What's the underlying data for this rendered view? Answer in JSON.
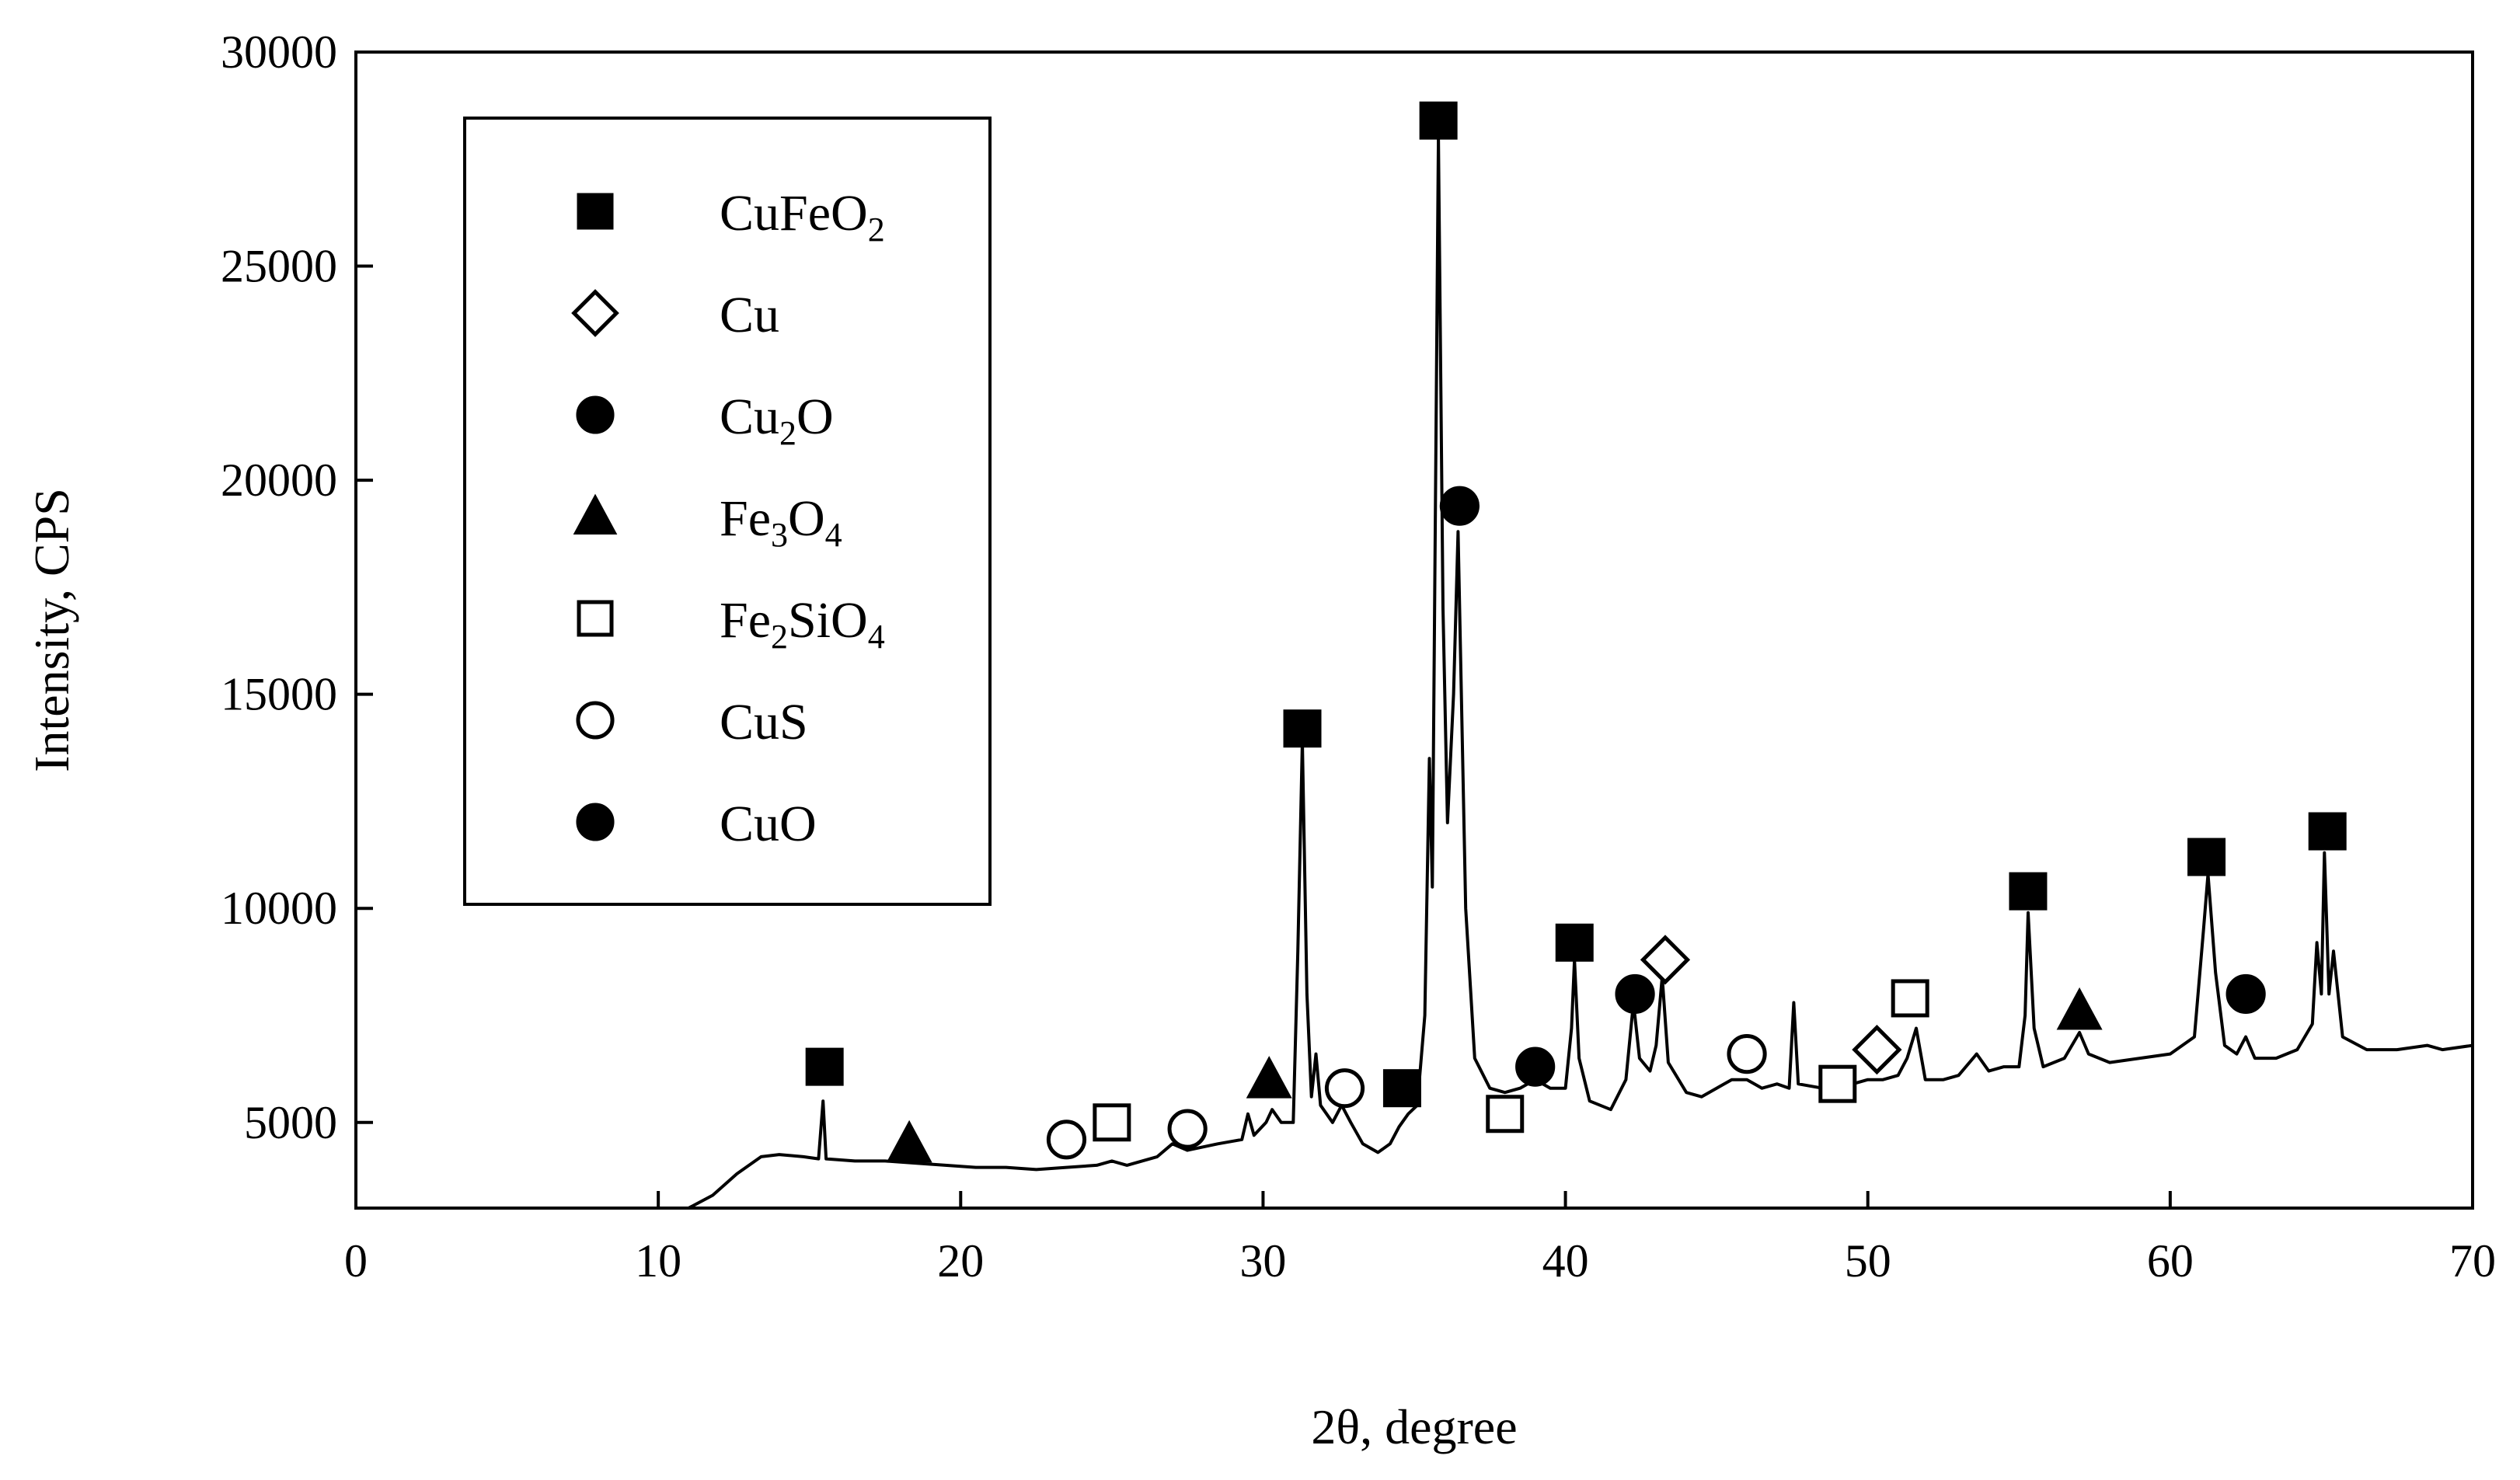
{
  "chart_data": {
    "type": "line",
    "title": "",
    "xlabel": "2θ, degree",
    "ylabel": "Intensity, CPS",
    "xlim": [
      0,
      70
    ],
    "ylim": [
      3000,
      30000
    ],
    "x_ticks": [
      "0",
      "10",
      "20",
      "30",
      "40",
      "50",
      "60",
      "70"
    ],
    "y_ticks": [
      "5000",
      "10000",
      "15000",
      "20000",
      "25000",
      "30000"
    ],
    "grid": false,
    "legend_position": "top-left",
    "legend": [
      {
        "key": "cufeo2",
        "base": "CuFeO",
        "sub": "2",
        "marker": "square-filled"
      },
      {
        "key": "cu",
        "base": "Cu",
        "sub": "",
        "marker": "diamond-open"
      },
      {
        "key": "cu2o",
        "base": "Cu",
        "sub": "2",
        "tail": "O",
        "marker": "circle-filled"
      },
      {
        "key": "fe3o4",
        "base": "Fe",
        "sub": "3",
        "tail": "O",
        "sub2": "4",
        "marker": "triangle-filled"
      },
      {
        "key": "fe2sio4",
        "base": "Fe",
        "sub": "2",
        "tail": "SiO",
        "sub2": "4",
        "marker": "square-open"
      },
      {
        "key": "cus",
        "base": "CuS",
        "sub": "",
        "marker": "circle-open"
      },
      {
        "key": "cuo",
        "base": "CuO",
        "sub": "",
        "marker": "circle-filled"
      }
    ],
    "series": [
      {
        "points": [
          [
            11.0,
            2950
          ],
          [
            11.8,
            3300
          ],
          [
            12.6,
            3800
          ],
          [
            13.4,
            4200
          ],
          [
            14.0,
            4250
          ],
          [
            14.8,
            4200
          ],
          [
            15.3,
            4150
          ],
          [
            15.45,
            5500
          ],
          [
            15.55,
            4150
          ],
          [
            16.5,
            4100
          ],
          [
            17.5,
            4100
          ],
          [
            18.5,
            4050
          ],
          [
            19.5,
            4000
          ],
          [
            20.5,
            3950
          ],
          [
            21.5,
            3950
          ],
          [
            22.5,
            3900
          ],
          [
            23.5,
            3950
          ],
          [
            24.5,
            4000
          ],
          [
            25.0,
            4100
          ],
          [
            25.5,
            4000
          ],
          [
            26.5,
            4200
          ],
          [
            27.0,
            4500
          ],
          [
            27.5,
            4350
          ],
          [
            28.5,
            4500
          ],
          [
            29.3,
            4600
          ],
          [
            29.5,
            5200
          ],
          [
            29.7,
            4700
          ],
          [
            30.1,
            5000
          ],
          [
            30.3,
            5300
          ],
          [
            30.6,
            5000
          ],
          [
            31.0,
            5000
          ],
          [
            31.15,
            9000
          ],
          [
            31.3,
            13900
          ],
          [
            31.45,
            8000
          ],
          [
            31.6,
            5600
          ],
          [
            31.75,
            6600
          ],
          [
            31.9,
            5400
          ],
          [
            32.3,
            5000
          ],
          [
            32.6,
            5400
          ],
          [
            32.9,
            5000
          ],
          [
            33.3,
            4500
          ],
          [
            33.8,
            4300
          ],
          [
            34.2,
            4500
          ],
          [
            34.5,
            4900
          ],
          [
            34.8,
            5200
          ],
          [
            35.1,
            5400
          ],
          [
            35.35,
            7500
          ],
          [
            35.5,
            13500
          ],
          [
            35.6,
            10500
          ],
          [
            35.8,
            28000
          ],
          [
            35.95,
            17000
          ],
          [
            36.1,
            12000
          ],
          [
            36.3,
            15000
          ],
          [
            36.45,
            18800
          ],
          [
            36.7,
            10000
          ],
          [
            37.0,
            6500
          ],
          [
            37.5,
            5800
          ],
          [
            38.0,
            5700
          ],
          [
            38.5,
            5800
          ],
          [
            39.0,
            6000
          ],
          [
            39.5,
            5800
          ],
          [
            40.0,
            5800
          ],
          [
            40.2,
            7200
          ],
          [
            40.3,
            8800
          ],
          [
            40.45,
            6500
          ],
          [
            40.8,
            5500
          ],
          [
            41.5,
            5300
          ],
          [
            42.0,
            6000
          ],
          [
            42.25,
            7800
          ],
          [
            42.45,
            6500
          ],
          [
            42.8,
            6200
          ],
          [
            43.0,
            6800
          ],
          [
            43.2,
            8400
          ],
          [
            43.4,
            6400
          ],
          [
            44.0,
            5700
          ],
          [
            44.5,
            5600
          ],
          [
            45.0,
            5800
          ],
          [
            45.5,
            6000
          ],
          [
            46.0,
            6000
          ],
          [
            46.5,
            5800
          ],
          [
            47.0,
            5900
          ],
          [
            47.4,
            5800
          ],
          [
            47.55,
            7800
          ],
          [
            47.7,
            5900
          ],
          [
            48.5,
            5800
          ],
          [
            49.5,
            5900
          ],
          [
            50.0,
            6000
          ],
          [
            50.5,
            6000
          ],
          [
            51.0,
            6100
          ],
          [
            51.3,
            6500
          ],
          [
            51.6,
            7200
          ],
          [
            51.9,
            6000
          ],
          [
            52.5,
            6000
          ],
          [
            53.0,
            6100
          ],
          [
            53.6,
            6600
          ],
          [
            54.0,
            6200
          ],
          [
            54.5,
            6300
          ],
          [
            55.0,
            6300
          ],
          [
            55.2,
            7500
          ],
          [
            55.3,
            9900
          ],
          [
            55.5,
            7200
          ],
          [
            55.8,
            6300
          ],
          [
            56.5,
            6500
          ],
          [
            57.0,
            7100
          ],
          [
            57.3,
            6600
          ],
          [
            58.0,
            6400
          ],
          [
            59.0,
            6500
          ],
          [
            60.0,
            6600
          ],
          [
            60.8,
            7000
          ],
          [
            61.1,
            9500
          ],
          [
            61.25,
            10800
          ],
          [
            61.5,
            8500
          ],
          [
            61.8,
            6800
          ],
          [
            62.2,
            6600
          ],
          [
            62.5,
            7000
          ],
          [
            62.8,
            6500
          ],
          [
            63.5,
            6500
          ],
          [
            64.2,
            6700
          ],
          [
            64.7,
            7300
          ],
          [
            64.85,
            9200
          ],
          [
            65.0,
            8000
          ],
          [
            65.1,
            11300
          ],
          [
            65.25,
            8000
          ],
          [
            65.4,
            9000
          ],
          [
            65.7,
            7000
          ],
          [
            66.5,
            6700
          ],
          [
            67.5,
            6700
          ],
          [
            68.5,
            6800
          ],
          [
            69.0,
            6700
          ],
          [
            70.0,
            6800
          ]
        ]
      }
    ],
    "peak_markers": [
      {
        "phase": "cufeo2",
        "x": 15.5,
        "y": 6300
      },
      {
        "phase": "fe3o4",
        "x": 18.3,
        "y": 4500
      },
      {
        "phase": "cus",
        "x": 23.5,
        "y": 4600
      },
      {
        "phase": "fe2sio4",
        "x": 25.0,
        "y": 5000
      },
      {
        "phase": "cus",
        "x": 27.5,
        "y": 4850
      },
      {
        "phase": "fe3o4",
        "x": 30.2,
        "y": 6000
      },
      {
        "phase": "cufeo2",
        "x": 31.3,
        "y": 14200
      },
      {
        "phase": "cus",
        "x": 32.7,
        "y": 5800
      },
      {
        "phase": "cufeo2",
        "x": 34.6,
        "y": 5800
      },
      {
        "phase": "cufeo2",
        "x": 35.8,
        "y": 28400
      },
      {
        "phase": "cuo",
        "x": 36.5,
        "y": 19400
      },
      {
        "phase": "fe2sio4",
        "x": 38.0,
        "y": 5200
      },
      {
        "phase": "cuo",
        "x": 39.0,
        "y": 6300
      },
      {
        "phase": "cufeo2",
        "x": 40.3,
        "y": 9200
      },
      {
        "phase": "cu2o",
        "x": 42.3,
        "y": 8000
      },
      {
        "phase": "cu",
        "x": 43.3,
        "y": 8800
      },
      {
        "phase": "cus",
        "x": 46.0,
        "y": 6600
      },
      {
        "phase": "fe2sio4",
        "x": 49.0,
        "y": 5900
      },
      {
        "phase": "cu",
        "x": 50.3,
        "y": 6700
      },
      {
        "phase": "fe2sio4",
        "x": 51.4,
        "y": 7900
      },
      {
        "phase": "cufeo2",
        "x": 55.3,
        "y": 10400
      },
      {
        "phase": "fe3o4",
        "x": 57.0,
        "y": 7600
      },
      {
        "phase": "cufeo2",
        "x": 61.2,
        "y": 11200
      },
      {
        "phase": "cuo",
        "x": 62.5,
        "y": 8000
      },
      {
        "phase": "cufeo2",
        "x": 65.2,
        "y": 11800
      }
    ]
  }
}
